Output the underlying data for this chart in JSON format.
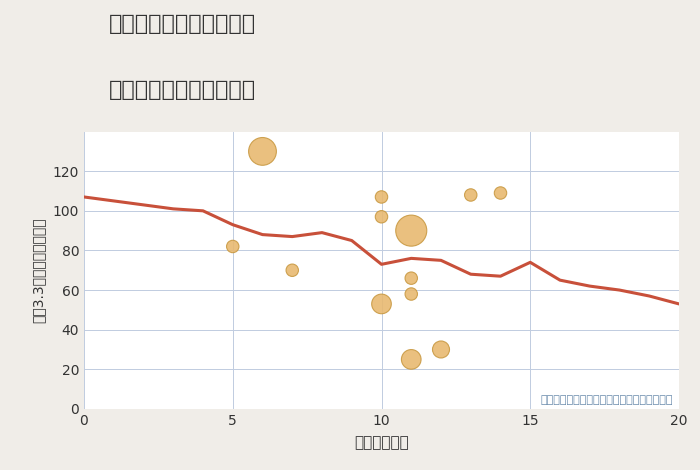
{
  "title_line1": "福岡県福岡市西区飯氏の",
  "title_line2": "駅距離別中古戸建て価格",
  "xlabel": "駅距離（分）",
  "ylabel": "嵪（3.3㎡）単価（万円）",
  "annotation": "円の大きさは、取引のあった物件面積を示す",
  "background_color": "#f0ede8",
  "plot_bg_color": "#ffffff",
  "line_color": "#c8503a",
  "scatter_color": "#e8b86d",
  "scatter_edge_color": "#c89840",
  "grid_color": "#c0cce0",
  "text_color": "#333333",
  "annotation_color": "#6688aa",
  "line_x": [
    0,
    3,
    4,
    5,
    6,
    7,
    8,
    9,
    10,
    11,
    12,
    13,
    14,
    15,
    16,
    17,
    18,
    19,
    20
  ],
  "line_y": [
    107,
    101,
    100,
    93,
    88,
    87,
    89,
    85,
    73,
    76,
    75,
    68,
    67,
    74,
    65,
    62,
    60,
    57,
    53
  ],
  "scatter_x": [
    6,
    5,
    7,
    10,
    10,
    10,
    11,
    11,
    11,
    11,
    12,
    13,
    14
  ],
  "scatter_y": [
    130,
    82,
    70,
    107,
    97,
    53,
    90,
    66,
    58,
    25,
    30,
    108,
    109
  ],
  "scatter_sizes": [
    400,
    80,
    80,
    80,
    80,
    200,
    500,
    80,
    80,
    200,
    150,
    80,
    80
  ],
  "xlim": [
    0,
    20
  ],
  "ylim": [
    0,
    140
  ],
  "xticks": [
    0,
    5,
    10,
    15,
    20
  ],
  "yticks": [
    0,
    20,
    40,
    60,
    80,
    100,
    120
  ]
}
